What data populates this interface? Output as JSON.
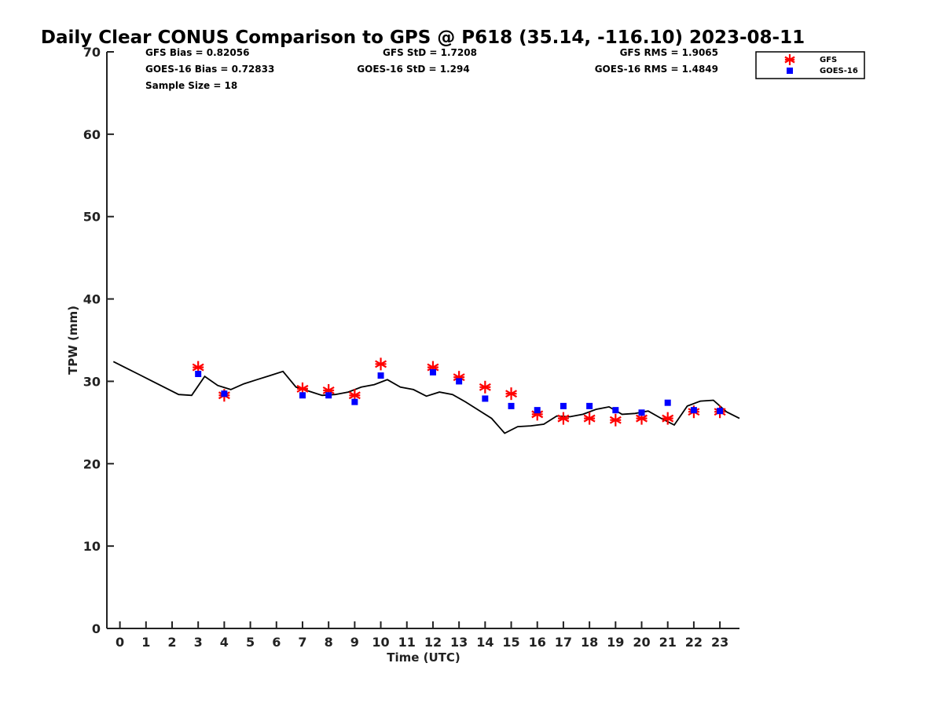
{
  "chart_data": {
    "type": "scatter",
    "title": "Daily Clear CONUS Comparison to GPS @ P618 (35.14, -116.10) 2023-08-11",
    "xlabel": "Time (UTC)",
    "ylabel": "TPW (mm)",
    "xlim": [
      -0.5,
      23.75
    ],
    "ylim": [
      0,
      70
    ],
    "xticks": [
      0,
      1,
      2,
      3,
      4,
      5,
      6,
      7,
      8,
      9,
      10,
      11,
      12,
      13,
      14,
      15,
      16,
      17,
      18,
      19,
      20,
      21,
      22,
      23
    ],
    "yticks": [
      0,
      10,
      20,
      30,
      40,
      50,
      60,
      70
    ],
    "grid": false,
    "legend_position": "top-right",
    "stats": {
      "gfs_bias": "GFS Bias = 0.82056",
      "goes_bias": "GOES-16 Bias = 0.72833",
      "sample_size": "Sample Size = 18",
      "gfs_std": "GFS StD = 1.7208",
      "goes_std": "GOES-16 StD = 1.294",
      "gfs_rms": "GFS RMS = 1.9065",
      "goes_rms": "GOES-16 RMS = 1.4849"
    },
    "series": [
      {
        "name": "GFS",
        "marker": "asterisk",
        "color": "#ff0000",
        "x": [
          3,
          4,
          7,
          8,
          9,
          10,
          12,
          13,
          14,
          15,
          16,
          17,
          18,
          19,
          20,
          21,
          22,
          23
        ],
        "y": [
          31.7,
          28.3,
          29.1,
          28.9,
          28.3,
          32.1,
          31.7,
          30.5,
          29.3,
          28.5,
          26.0,
          25.5,
          25.5,
          25.3,
          25.5,
          25.5,
          26.3,
          26.3
        ]
      },
      {
        "name": "GOES-16",
        "marker": "square",
        "color": "#0000ff",
        "x": [
          3,
          4,
          7,
          8,
          9,
          10,
          12,
          13,
          14,
          15,
          16,
          17,
          18,
          19,
          20,
          21,
          22,
          23
        ],
        "y": [
          30.9,
          28.5,
          28.3,
          28.3,
          27.5,
          30.7,
          31.1,
          30.0,
          27.9,
          27.0,
          26.5,
          27.0,
          27.0,
          26.5,
          26.2,
          27.4,
          26.5,
          26.4
        ]
      },
      {
        "marker": "line",
        "color": "#000000",
        "x": [
          -0.25,
          0.25,
          0.75,
          1.25,
          1.75,
          2.25,
          2.75,
          3.25,
          3.75,
          4.25,
          4.75,
          5.25,
          5.75,
          6.25,
          6.75,
          7.25,
          7.75,
          8.25,
          8.75,
          9.25,
          9.75,
          10.25,
          10.75,
          11.25,
          11.75,
          12.25,
          12.75,
          13.25,
          13.75,
          14.25,
          14.75,
          15.25,
          15.75,
          16.25,
          16.75,
          17.25,
          17.75,
          18.25,
          18.75,
          19.25,
          19.75,
          20.25,
          20.75,
          21.25,
          21.75,
          22.25,
          22.75,
          23.25,
          23.75
        ],
        "y": [
          32.4,
          31.6,
          30.8,
          30.0,
          29.2,
          28.4,
          28.3,
          30.6,
          29.5,
          29.0,
          29.7,
          30.2,
          30.7,
          31.2,
          29.3,
          28.8,
          28.3,
          28.4,
          28.7,
          29.3,
          29.6,
          30.2,
          29.3,
          29.0,
          28.2,
          28.7,
          28.4,
          27.5,
          26.5,
          25.5,
          23.7,
          24.5,
          24.6,
          24.8,
          25.8,
          25.7,
          26.0,
          26.6,
          26.9,
          26.0,
          26.1,
          26.4,
          25.5,
          24.7,
          27.0,
          27.6,
          27.7,
          26.3,
          25.5
        ]
      }
    ]
  }
}
